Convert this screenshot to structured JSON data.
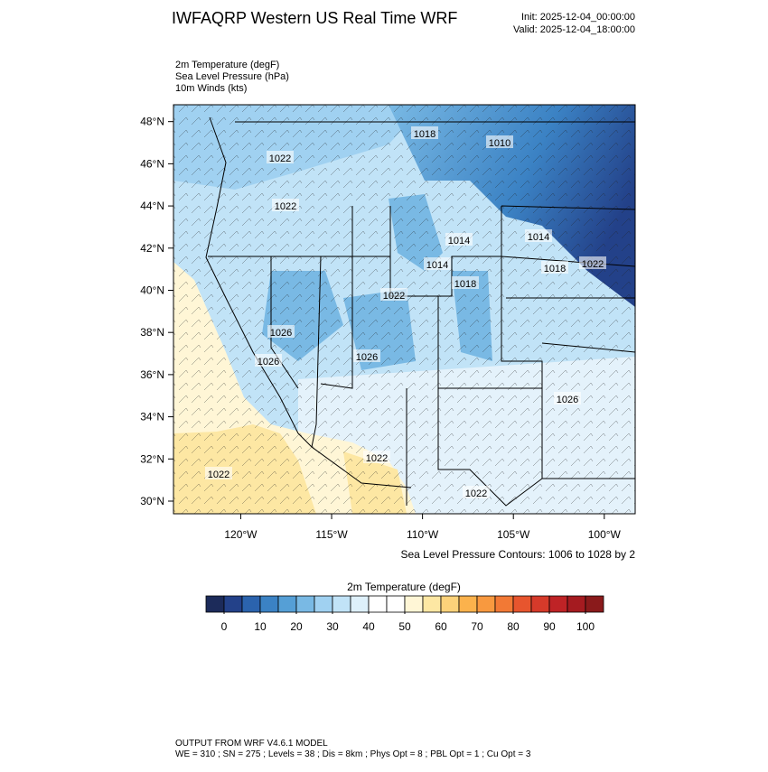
{
  "header": {
    "title": "IWFAQRP Western US Real Time WRF",
    "init": "Init: 2025-12-04_00:00:00",
    "valid": "Valid: 2025-12-04_18:00:00"
  },
  "fields": [
    "2m Temperature   (degF)",
    "Sea Level Pressure   (hPa)",
    "10m Winds   (kts)"
  ],
  "map": {
    "xlim": [
      -123.7,
      -98.3
    ],
    "ylim": [
      29.4,
      48.8
    ],
    "xticks": [
      {
        "value": -120,
        "label": "120°W"
      },
      {
        "value": -115,
        "label": "115°W"
      },
      {
        "value": -110,
        "label": "110°W"
      },
      {
        "value": -105,
        "label": "105°W"
      },
      {
        "value": -100,
        "label": "100°W"
      }
    ],
    "yticks": [
      {
        "value": 48,
        "label": "48°N"
      },
      {
        "value": 46,
        "label": "46°N"
      },
      {
        "value": 44,
        "label": "44°N"
      },
      {
        "value": 42,
        "label": "42°N"
      },
      {
        "value": 40,
        "label": "40°N"
      },
      {
        "value": 38,
        "label": "38°N"
      },
      {
        "value": 36,
        "label": "36°N"
      },
      {
        "value": 34,
        "label": "34°N"
      },
      {
        "value": 32,
        "label": "32°N"
      },
      {
        "value": 30,
        "label": "30°N"
      }
    ],
    "contour_labels": [
      "1018",
      "1010",
      "1014",
      "1022",
      "1022",
      "1014",
      "1014",
      "1018",
      "1022",
      "1018",
      "1022",
      "1026",
      "1026",
      "1026",
      "1026",
      "1022",
      "1022",
      "1022"
    ],
    "contour_note": "Sea Level Pressure Contours: 1006 to 1028 by 2"
  },
  "colorbar": {
    "title": "2m Temperature  (degF)",
    "colors": [
      "#1c2b5a",
      "#234189",
      "#2b63ad",
      "#3b82c4",
      "#559fd6",
      "#79b9e4",
      "#a0d1f1",
      "#c1e3f7",
      "#def0fa",
      "#ffffff",
      "#ffffff",
      "#fff6d6",
      "#fde7a3",
      "#fcd27a",
      "#fbb24c",
      "#f8993f",
      "#f27935",
      "#e7552e",
      "#d63a2a",
      "#bf2326",
      "#a51b20",
      "#8a1a1b"
    ],
    "ticks": [
      0,
      10,
      20,
      30,
      40,
      50,
      60,
      70,
      80,
      90,
      100
    ]
  },
  "footer": [
    "OUTPUT FROM WRF V4.6.1 MODEL",
    "WE = 310 ; SN = 275 ; Levels = 38 ; Dis = 8km ; Phys Opt = 8 ; PBL Opt = 1 ; Cu Opt = 3"
  ]
}
